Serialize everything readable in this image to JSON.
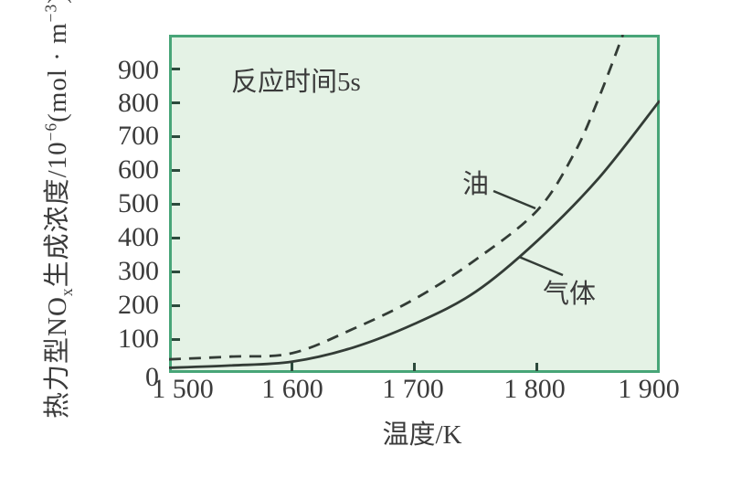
{
  "chart_data": {
    "type": "line",
    "annotation": "反应时间5s",
    "xlabel": "温度/K",
    "ylabel_parts": {
      "prefix": "热力型NO",
      "sub_x": "x",
      "mid": "生成浓度/10",
      "sup_exp": "−6",
      "unit_open": "(mol · m",
      "sup_unit_exp": "−3",
      "unit_close": ")"
    },
    "xlim": [
      1500,
      1900
    ],
    "ylim": [
      0,
      1000
    ],
    "xticks": {
      "values": [
        1500,
        1600,
        1700,
        1800,
        1900
      ],
      "labels": [
        "1 500",
        "1 600",
        "1 700",
        "1 800",
        "1 900"
      ]
    },
    "yticks": {
      "values": [
        0,
        100,
        200,
        300,
        400,
        500,
        600,
        700,
        800,
        900
      ],
      "labels": [
        "0",
        "100",
        "200",
        "300",
        "400",
        "500",
        "600",
        "700",
        "800",
        "900"
      ]
    },
    "series": [
      {
        "name": "油",
        "line_style": "dashed",
        "points": [
          [
            1500,
            40
          ],
          [
            1550,
            48
          ],
          [
            1600,
            58
          ],
          [
            1650,
            130
          ],
          [
            1700,
            218
          ],
          [
            1750,
            335
          ],
          [
            1800,
            480
          ],
          [
            1830,
            647
          ],
          [
            1850,
            810
          ],
          [
            1870,
            1000
          ]
        ]
      },
      {
        "name": "气体",
        "line_style": "solid",
        "points": [
          [
            1500,
            15
          ],
          [
            1550,
            22
          ],
          [
            1600,
            33
          ],
          [
            1650,
            75
          ],
          [
            1700,
            145
          ],
          [
            1750,
            240
          ],
          [
            1800,
            390
          ],
          [
            1850,
            575
          ],
          [
            1900,
            805
          ]
        ]
      }
    ],
    "grid": false,
    "legend_position": "inline-annotations",
    "colors": {
      "plot_bg": "#e4f2e5",
      "plot_border": "#48a578",
      "curve": "#333c36",
      "text": "#3b3b3b",
      "tick": "#2c4a3c"
    }
  }
}
